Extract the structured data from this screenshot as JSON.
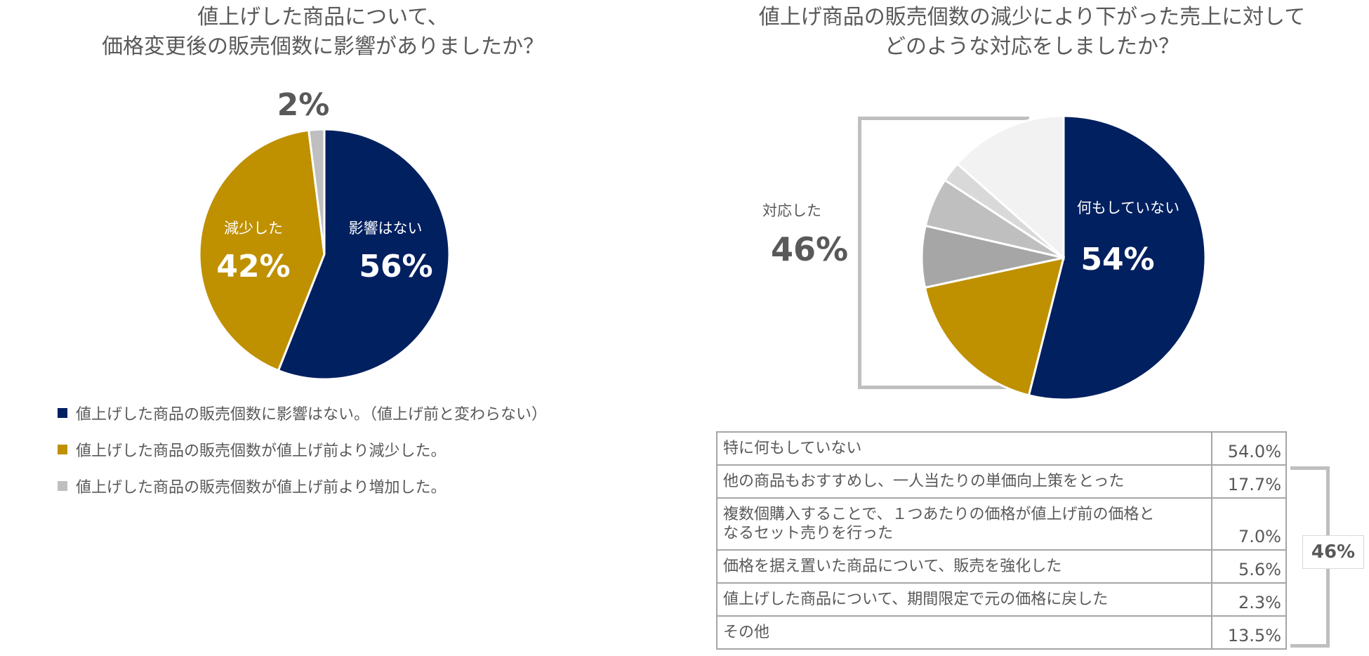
{
  "chart_data": [
    {
      "type": "pie",
      "title": "値上げした商品について、\n価格変更後の販売個数に影響がありましたか？",
      "slices": [
        {
          "name": "影響はない",
          "value": 56,
          "label": "56%",
          "color": "#002060",
          "label_color": "#ffffff"
        },
        {
          "name": "減少した",
          "value": 42,
          "label": "42%",
          "color": "#bf9000",
          "label_color": "#ffffff"
        },
        {
          "name": "",
          "value": 2,
          "label": "2%",
          "color": "#bfbfbf",
          "label_color": "#595959"
        }
      ],
      "legend": [
        {
          "text": "値上げした商品の販売個数に影響はない。（値上げ前と変わらない）",
          "color": "#002060"
        },
        {
          "text": "値上げした商品の販売個数が値上げ前より減少した。",
          "color": "#bf9000"
        },
        {
          "text": "値上げした商品の販売個数が値上げ前より増加した。",
          "color": "#bfbfbf"
        }
      ],
      "legend_position": "bottom-left"
    },
    {
      "type": "pie",
      "title": "値上げ商品の販売個数の減少により下がった売上に対して\nどのような対応をしましたか？",
      "slices": [
        {
          "name": "何もしていない",
          "value": 54.0,
          "label": "54%",
          "color": "#002060",
          "label_color": "#ffffff"
        },
        {
          "value": 17.7,
          "color": "#bf9000"
        },
        {
          "value": 7.0,
          "color": "#a6a6a6"
        },
        {
          "value": 5.6,
          "color": "#bfbfbf"
        },
        {
          "value": 2.3,
          "color": "#d9d9d9"
        },
        {
          "value": 13.5,
          "color": "#f2f2f2"
        }
      ],
      "responded_label": "対応した",
      "responded_pct": "46%",
      "table": [
        {
          "label": "特に何もしていない",
          "value": "54.0%"
        },
        {
          "label": "他の商品もおすすめし、一人当たりの単価向上策をとった",
          "value": "17.7%"
        },
        {
          "label": "複数個購入することで、１つあたりの価格が値上げ前の価格と\nなるセット売りを行った",
          "value": "7.0%"
        },
        {
          "label": "価格を据え置いた商品について、販売を強化した",
          "value": "5.6%"
        },
        {
          "label": "値上げした商品について、期間限定で元の価格に戻した",
          "value": "2.3%"
        },
        {
          "label": "その他",
          "value": "13.5%"
        }
      ],
      "table_bracket_label": "46%"
    }
  ]
}
